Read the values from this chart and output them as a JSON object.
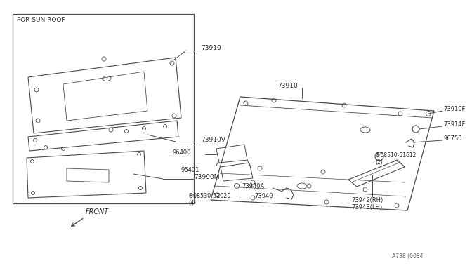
{
  "bg_color": "#ffffff",
  "line_color": "#4a4a4a",
  "text_color": "#2a2a2a",
  "fig_width": 6.4,
  "fig_height": 3.72,
  "footer": "A738 (0084",
  "parts": {
    "sunroof_box_label": "FOR SUN ROOF",
    "p73910_left": "73910",
    "p73910v": "73910V",
    "p73990m": "73990M",
    "p73910_right": "73910",
    "p73910f": "73910F",
    "p73914f": "73914F",
    "p96750": "96750",
    "p08510": "®08510-61612\n(2)",
    "p73940a": "73940A",
    "p73940": "73940",
    "p96400": "96400",
    "p96401": "96401",
    "p08530": "®08530-52020\n(4)",
    "p73942": "73942(RH)\n73943(LH)",
    "front_label": "FRONT"
  }
}
